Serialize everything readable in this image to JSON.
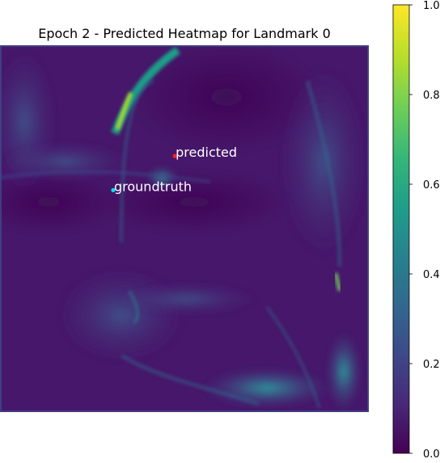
{
  "chart_data": {
    "type": "heatmap",
    "title": "Epoch 2 - Predicted Heatmap for Landmark 0",
    "axes_visible": false,
    "colormap": "viridis",
    "colors": {
      "background_cmap_start": "#440154",
      "cmap_stops": [
        "#440154",
        "#482878",
        "#3e4989",
        "#31688e",
        "#26828e",
        "#1f9e89",
        "#35b779",
        "#6ece58",
        "#b5de2b",
        "#fde725"
      ],
      "predicted_marker": "#ff2020",
      "groundtruth_marker": "#00e5ff",
      "annotation_text": "#ffffff"
    },
    "colorbar": {
      "range": [
        0.0,
        1.0
      ],
      "ticks": [
        0.0,
        0.2,
        0.4,
        0.6,
        0.8,
        1.0
      ],
      "tick_labels": [
        "0.0",
        "0.2",
        "0.4",
        "0.6",
        "0.8",
        "1.0"
      ]
    },
    "points": [
      {
        "name": "predicted",
        "label": "predicted",
        "value_x": 0.474,
        "value_y": 0.302
      },
      {
        "name": "groundtruth",
        "label": "groundtruth",
        "value_x": 0.307,
        "value_y": 0.395
      }
    ]
  }
}
